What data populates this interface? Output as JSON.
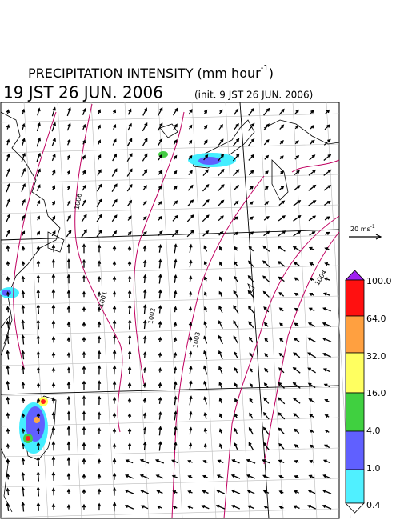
{
  "header": {
    "title": "PRECIPITATION INTENSITY (mm hour",
    "title_superscript": "-1",
    "title_end": ")",
    "valid_time": "19 JST 26 JUN. 2006",
    "init_time": "(init. 9 JST 26 JUN. 2006)"
  },
  "reference_vector": {
    "label": "20 ms",
    "superscript": "-1"
  },
  "isobars": [
    "1006",
    "1001",
    "1002",
    "1003",
    "1004"
  ],
  "colorbar": {
    "labels": [
      "100.0",
      "64.0",
      "32.0",
      "16.0",
      "4.0",
      "1.0",
      "0.4"
    ]
  }
}
